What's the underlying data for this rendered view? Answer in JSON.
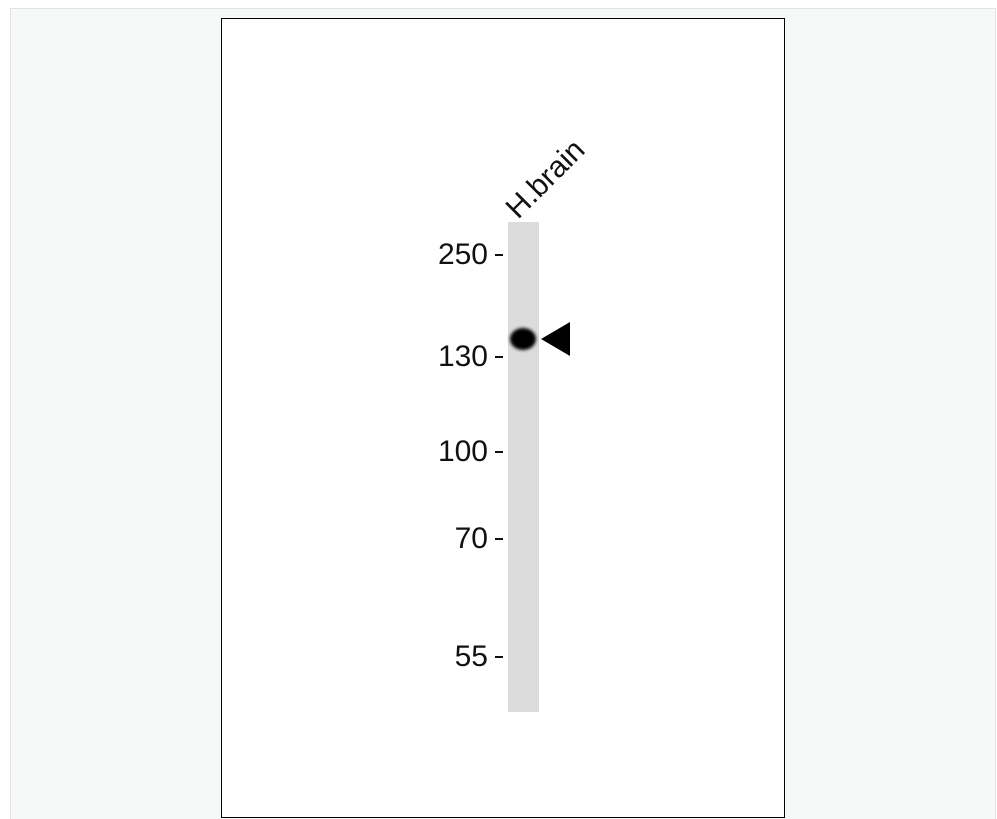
{
  "lane": {
    "label": "H.brain"
  },
  "markers": [
    {
      "label": "250"
    },
    {
      "label": "130"
    },
    {
      "label": "100"
    },
    {
      "label": "70"
    },
    {
      "label": "55"
    }
  ]
}
